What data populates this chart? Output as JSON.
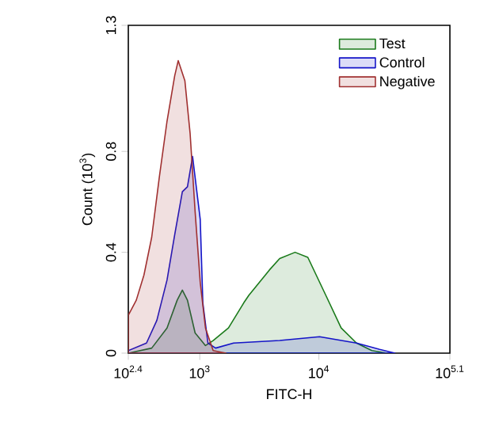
{
  "chart_data": {
    "type": "area",
    "xlabel": "FITC-H",
    "ylabel": "Count (10$^{3}$)",
    "log": "x",
    "xlim": [
      251.19,
      125892.5
    ],
    "ylim": [
      0,
      1.3
    ],
    "xticks": [
      {
        "value": 251.19,
        "label": "10$^{2.4}$"
      },
      {
        "value": 1000,
        "label": "10$^{3}$"
      },
      {
        "value": 10000,
        "label": "10$^{4}$"
      },
      {
        "value": 125892.5,
        "label": "10$^{5.1}$"
      }
    ],
    "yticks": [
      0,
      0.4,
      0.8,
      1.3
    ],
    "legend": "top right",
    "series": [
      {
        "name": "Test",
        "color": "#1a7a1a",
        "x": [
          251.19,
          395,
          531,
          646,
          714,
          788,
          914,
          1116,
          1295,
          1742,
          2344,
          2588,
          3846,
          4688,
          6310,
          8075,
          11420,
          15380,
          20700,
          27860,
          37500
        ],
        "values": [
          0,
          0.02,
          0.1,
          0.21,
          0.25,
          0.21,
          0.08,
          0.03,
          0.05,
          0.1,
          0.2,
          0.23,
          0.33,
          0.375,
          0.4,
          0.38,
          0.23,
          0.1,
          0.04,
          0.01,
          0
        ]
      },
      {
        "name": "Control",
        "color": "#1414c8",
        "x": [
          251.19,
          357,
          436,
          531,
          616,
          714,
          788,
          870,
          1009,
          1061,
          1170,
          1358,
          1923,
          4688,
          10135,
          20700,
          32350,
          43550
        ],
        "values": [
          0.01,
          0.04,
          0.13,
          0.29,
          0.47,
          0.64,
          0.66,
          0.78,
          0.53,
          0.2,
          0.04,
          0.02,
          0.04,
          0.05,
          0.065,
          0.04,
          0.015,
          0
        ]
      },
      {
        "name": "Negative",
        "color": "#a03030",
        "x": [
          251.19,
          293,
          340,
          395,
          458,
          531,
          616,
          659,
          750,
          830,
          914,
          1009,
          1116,
          1295,
          1660
        ],
        "values": [
          0.15,
          0.21,
          0.31,
          0.46,
          0.7,
          0.92,
          1.1,
          1.16,
          1.08,
          0.87,
          0.56,
          0.28,
          0.1,
          0.01,
          0
        ]
      }
    ]
  }
}
